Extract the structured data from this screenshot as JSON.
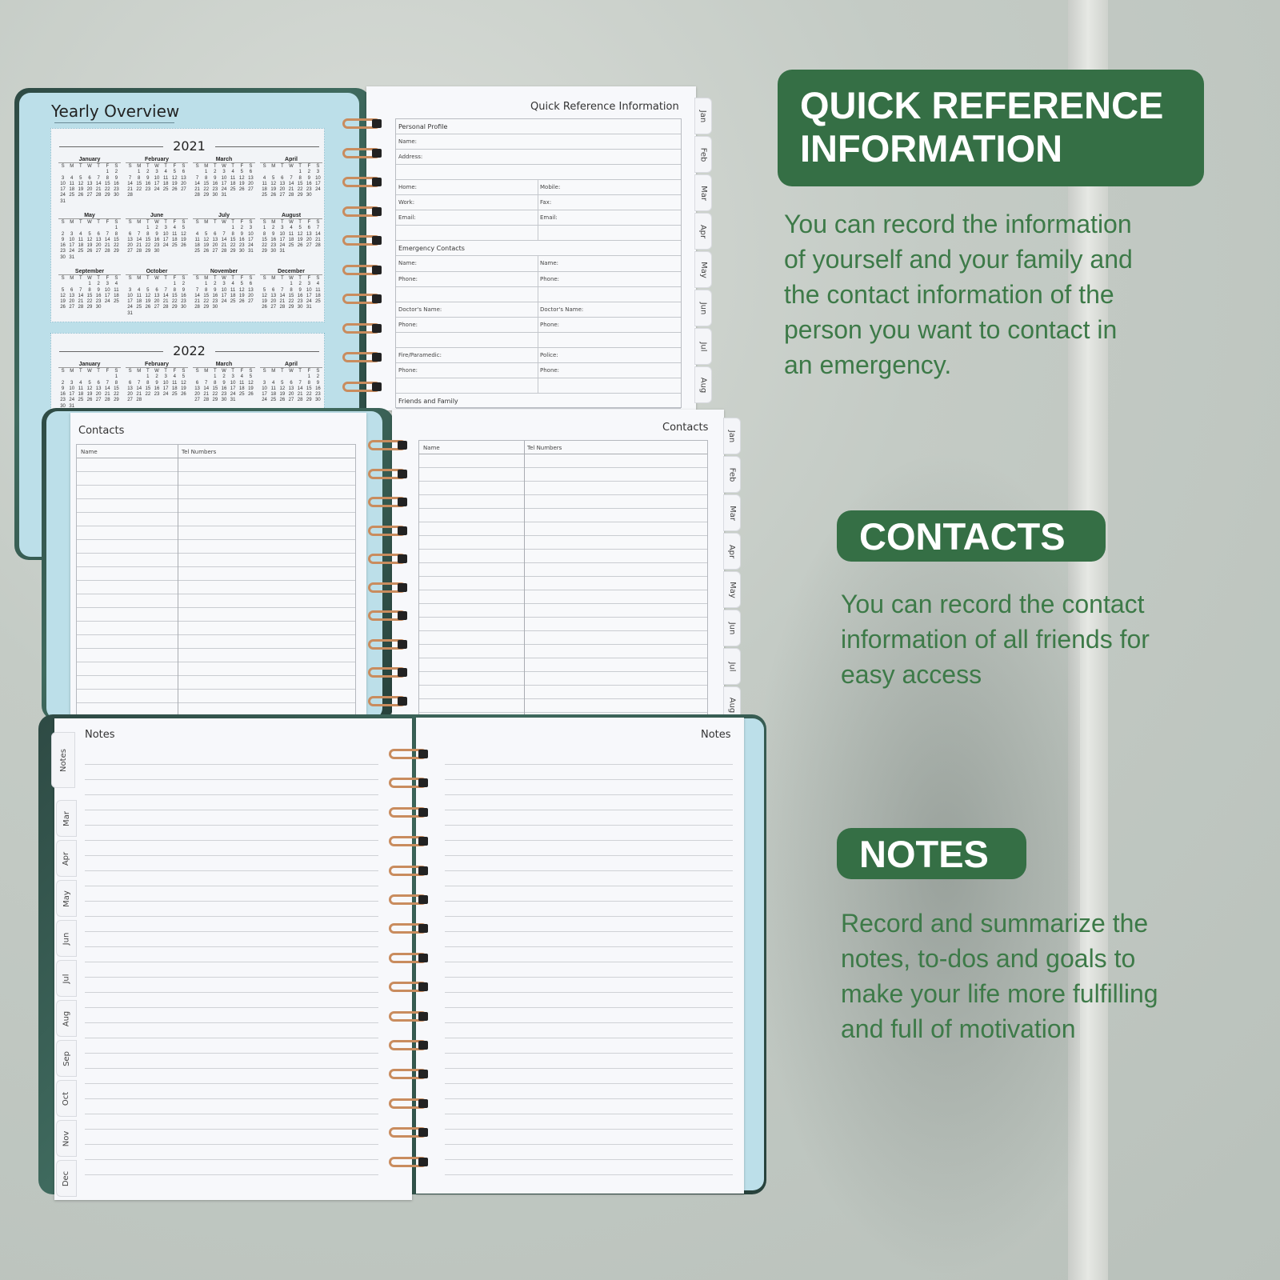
{
  "calendar": {
    "title": "Yearly Overview",
    "weekdays": [
      "S",
      "M",
      "T",
      "W",
      "T",
      "F",
      "S"
    ],
    "months": [
      "January",
      "February",
      "March",
      "April",
      "May",
      "June",
      "July",
      "August",
      "September",
      "October",
      "November",
      "December"
    ],
    "years": [
      {
        "year": "2021",
        "month_count": 12
      },
      {
        "year": "2022",
        "month_count": 4
      }
    ]
  },
  "quick_reference": {
    "title": "Quick Reference Information",
    "rows": [
      {
        "left": "Personal Profile",
        "header": true
      },
      {
        "left": "Name:"
      },
      {
        "left": "Address:"
      },
      {
        "left": ""
      },
      {
        "left": "Home:",
        "right": "Mobile:"
      },
      {
        "left": "Work:",
        "right": "Fax:"
      },
      {
        "left": "Email:",
        "right": "Email:"
      },
      {
        "left": "",
        "right": ""
      },
      {
        "left": "Emergency Contacts",
        "header": true
      },
      {
        "left": "Name:",
        "right": "Name:"
      },
      {
        "left": "Phone:",
        "right": "Phone:"
      },
      {
        "left": "",
        "right": ""
      },
      {
        "left": "Doctor's Name:",
        "right": "Doctor's Name:"
      },
      {
        "left": "Phone:",
        "right": "Phone:"
      },
      {
        "left": "",
        "right": ""
      },
      {
        "left": "Fire/Paramedic:",
        "right": "Police:"
      },
      {
        "left": "Phone:",
        "right": "Phone:"
      },
      {
        "left": "",
        "right": ""
      },
      {
        "left": "Friends and Family",
        "header": true
      }
    ],
    "tabs": [
      "Jan",
      "Feb",
      "Mar",
      "Apr",
      "May",
      "Jun",
      "Jul",
      "Aug"
    ]
  },
  "contacts": {
    "left_title": "Contacts",
    "right_title": "Contacts",
    "col_name": "Name",
    "col_tel": "Tel Numbers",
    "tabs": [
      "Jan",
      "Feb",
      "Mar",
      "Apr",
      "May",
      "Jun",
      "Jul",
      "Aug"
    ]
  },
  "notes": {
    "left_title": "Notes",
    "right_title": "Notes",
    "tabs": [
      "Notes",
      "Mar",
      "Apr",
      "May",
      "Jun",
      "Jul",
      "Aug",
      "Sep",
      "Oct",
      "Nov",
      "Dec"
    ]
  },
  "features": [
    {
      "heading_lines": [
        "QUICK REFERENCE",
        "INFORMATION"
      ],
      "text_lines": [
        "You can record the information",
        "of yourself and your family and",
        "the contact information of the",
        "person you want to contact in",
        "an emergency."
      ]
    },
    {
      "heading_lines": [
        "CONTACTS"
      ],
      "text_lines": [
        "You can record the contact",
        "information of all friends for",
        "easy access"
      ]
    },
    {
      "heading_lines": [
        "NOTES"
      ],
      "text_lines": [
        "Record and summarize the",
        "notes, to-dos and goals to",
        "make your life more fulfilling",
        "and full of motivation"
      ]
    }
  ],
  "colors": {
    "heading_bg": "#356f45",
    "text_green": "#3d7a48",
    "page_blue": "#bcdfe9",
    "ring_copper": "#c98c5e"
  }
}
